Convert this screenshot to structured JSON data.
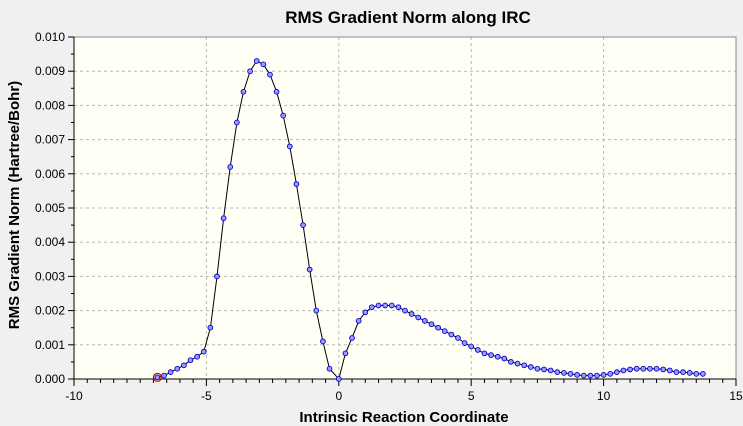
{
  "chart_data": {
    "type": "line",
    "title": "RMS Gradient Norm along IRC",
    "xlabel": "Intrinsic Reaction Coordinate",
    "ylabel": "RMS Gradient Norm (Hartree/Bohr)",
    "xlim": [
      -10,
      15
    ],
    "ylim": [
      0.0,
      0.01
    ],
    "x_ticks": [
      -10,
      -5,
      0,
      5,
      10,
      15
    ],
    "x_tick_labels": [
      "-10",
      "-5",
      "0",
      "5",
      "10",
      "15"
    ],
    "y_ticks": [
      0.0,
      0.001,
      0.002,
      0.003,
      0.004,
      0.005,
      0.006,
      0.007,
      0.008,
      0.009,
      0.01
    ],
    "y_tick_labels": [
      "0.000",
      "0.001",
      "0.002",
      "0.003",
      "0.004",
      "0.005",
      "0.006",
      "0.007",
      "0.008",
      "0.009",
      "0.010"
    ],
    "grid": true,
    "legend": "none",
    "colors": {
      "background": "#f0f0f0",
      "plot_background": "#fffff5",
      "line": "#000000",
      "marker_fill": "#9999ff",
      "marker_stroke": "#0000cc",
      "highlight_marker": "#cc0000",
      "grid": "#b8b8b8"
    },
    "highlight_point": {
      "x": -6.85,
      "y": 5e-05
    },
    "series": [
      {
        "x": [
          -6.85,
          -6.6,
          -6.35,
          -6.1,
          -5.85,
          -5.6,
          -5.35,
          -5.1,
          -4.85,
          -4.6,
          -4.35,
          -4.1,
          -3.85,
          -3.6,
          -3.35,
          -3.1,
          -2.85,
          -2.6,
          -2.35,
          -2.1,
          -1.85,
          -1.6,
          -1.35,
          -1.1,
          -0.85,
          -0.6,
          -0.35,
          0.0,
          0.25,
          0.5,
          0.75,
          1.0,
          1.25,
          1.5,
          1.75,
          2.0,
          2.25,
          2.5,
          2.75,
          3.0,
          3.25,
          3.5,
          3.75,
          4.0,
          4.25,
          4.5,
          4.75,
          5.0,
          5.25,
          5.5,
          5.75,
          6.0,
          6.25,
          6.5,
          6.75,
          7.0,
          7.25,
          7.5,
          7.75,
          8.0,
          8.25,
          8.5,
          8.75,
          9.0,
          9.25,
          9.5,
          9.75,
          10.0,
          10.25,
          10.5,
          10.75,
          11.0,
          11.25,
          11.5,
          11.75,
          12.0,
          12.25,
          12.5,
          12.75,
          13.0,
          13.25,
          13.5,
          13.75
        ],
        "y": [
          5e-05,
          0.0001,
          0.0002,
          0.0003,
          0.0004,
          0.00055,
          0.00065,
          0.0008,
          0.0015,
          0.003,
          0.0047,
          0.0062,
          0.0075,
          0.0084,
          0.009,
          0.0093,
          0.0092,
          0.0089,
          0.0084,
          0.0077,
          0.0068,
          0.0057,
          0.0045,
          0.0032,
          0.002,
          0.0011,
          0.0003,
          0.0,
          0.00075,
          0.0012,
          0.0017,
          0.00195,
          0.0021,
          0.00215,
          0.00215,
          0.00215,
          0.0021,
          0.002,
          0.0019,
          0.0018,
          0.0017,
          0.0016,
          0.0015,
          0.0014,
          0.0013,
          0.0012,
          0.00105,
          0.00095,
          0.00085,
          0.00075,
          0.0007,
          0.00065,
          0.0006,
          0.0005,
          0.00045,
          0.0004,
          0.00035,
          0.0003,
          0.00028,
          0.00025,
          0.0002,
          0.00018,
          0.00015,
          0.00012,
          0.0001,
          0.0001,
          0.0001,
          0.00012,
          0.00015,
          0.0002,
          0.00025,
          0.00028,
          0.0003,
          0.0003,
          0.0003,
          0.0003,
          0.00028,
          0.00025,
          0.0002,
          0.0002,
          0.00018,
          0.00015,
          0.00015
        ]
      }
    ]
  }
}
